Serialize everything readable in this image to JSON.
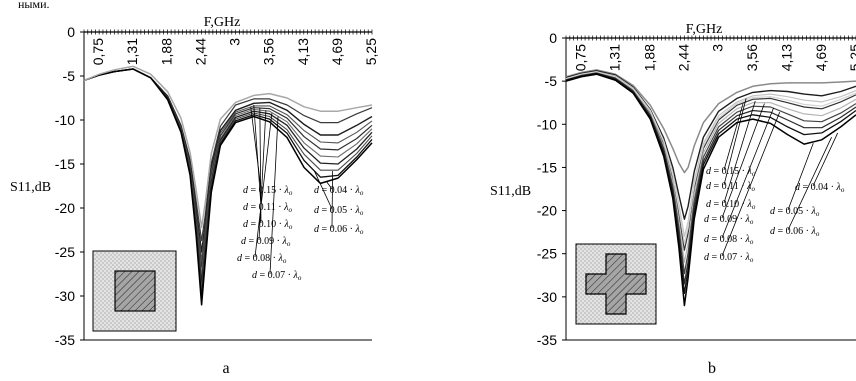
{
  "page_header": "ными.",
  "chart_data": [
    {
      "type": "line",
      "panel_label": "a",
      "xlabel": "F,GHz",
      "ylabel": "S11,dB",
      "xticks": [
        "0,75",
        "1,31",
        "1,88",
        "2,44",
        "3",
        "3,56",
        "4,13",
        "4,69",
        "5,25"
      ],
      "xtick_values": [
        0.75,
        1.31,
        1.88,
        2.44,
        3.0,
        3.56,
        4.13,
        4.69,
        5.25
      ],
      "xlim": [
        0.5,
        5.25
      ],
      "ylim": [
        -35,
        0
      ],
      "yticks": [
        0,
        -5,
        -10,
        -15,
        -20,
        -25,
        -30,
        -35
      ],
      "x": [
        0.5,
        0.75,
        1.0,
        1.31,
        1.6,
        1.88,
        2.1,
        2.25,
        2.35,
        2.44,
        2.5,
        2.6,
        2.75,
        3.0,
        3.3,
        3.56,
        3.85,
        4.13,
        4.4,
        4.69,
        5.0,
        5.25
      ],
      "series": [
        {
          "name": "d = 0.15·λo",
          "values": [
            -5.5,
            -4.9,
            -4.5,
            -4.2,
            -5.2,
            -7.3,
            -10.6,
            -14.5,
            -19.3,
            -23.7,
            -20.8,
            -14.9,
            -10.7,
            -8.3,
            -7.6,
            -7.6,
            -8.3,
            -9.5,
            -10.3,
            -10.3,
            -9.3,
            -8.6
          ]
        },
        {
          "name": "d = 0.11·λo",
          "values": [
            -5.5,
            -4.9,
            -4.5,
            -4.2,
            -5.2,
            -7.3,
            -10.7,
            -14.8,
            -20.2,
            -25.0,
            -21.7,
            -15.4,
            -11.2,
            -8.9,
            -8.1,
            -8.0,
            -8.9,
            -10.5,
            -11.7,
            -11.7,
            -10.6,
            -9.6
          ]
        },
        {
          "name": "d = 0.10·λo",
          "values": [
            -5.5,
            -4.9,
            -4.5,
            -4.2,
            -5.2,
            -7.4,
            -10.8,
            -15.1,
            -20.8,
            -25.9,
            -22.4,
            -15.8,
            -11.5,
            -9.1,
            -8.4,
            -8.4,
            -9.4,
            -11.2,
            -12.5,
            -12.6,
            -11.4,
            -10.1
          ]
        },
        {
          "name": "d = 0.09·λo",
          "values": [
            -5.5,
            -4.9,
            -4.5,
            -4.2,
            -5.2,
            -7.4,
            -10.9,
            -15.3,
            -21.2,
            -26.7,
            -23.0,
            -16.2,
            -11.8,
            -9.3,
            -8.6,
            -8.7,
            -9.8,
            -11.9,
            -13.3,
            -13.4,
            -12.1,
            -10.6
          ]
        },
        {
          "name": "d = 0.08·λo",
          "values": [
            -5.5,
            -4.9,
            -4.5,
            -4.2,
            -5.2,
            -7.5,
            -11.0,
            -15.5,
            -21.6,
            -27.6,
            -23.6,
            -16.6,
            -12.1,
            -9.5,
            -8.8,
            -9.0,
            -10.2,
            -12.6,
            -14.1,
            -14.2,
            -12.7,
            -11.0
          ]
        },
        {
          "name": "d = 0.07·λo",
          "values": [
            -5.5,
            -4.9,
            -4.5,
            -4.2,
            -5.2,
            -7.5,
            -11.1,
            -15.7,
            -22.0,
            -28.5,
            -24.2,
            -17.0,
            -12.3,
            -9.7,
            -9.0,
            -9.3,
            -10.6,
            -13.2,
            -14.9,
            -15.0,
            -13.3,
            -11.4
          ]
        },
        {
          "name": "d = 0.06·λo",
          "values": [
            -5.5,
            -4.9,
            -4.5,
            -4.2,
            -5.2,
            -7.6,
            -11.2,
            -15.9,
            -22.4,
            -29.3,
            -24.8,
            -17.4,
            -12.5,
            -9.9,
            -9.2,
            -9.6,
            -11.1,
            -13.9,
            -15.7,
            -15.7,
            -13.8,
            -11.8
          ]
        },
        {
          "name": "d = 0.05·λo",
          "values": [
            -5.5,
            -4.9,
            -4.5,
            -4.2,
            -5.2,
            -7.6,
            -11.3,
            -16.1,
            -22.8,
            -30.2,
            -25.4,
            -17.8,
            -12.7,
            -10.1,
            -9.4,
            -9.9,
            -11.5,
            -14.6,
            -16.5,
            -16.3,
            -14.2,
            -12.2
          ]
        },
        {
          "name": "d = 0.04·λo",
          "values": [
            -5.5,
            -4.9,
            -4.5,
            -4.2,
            -5.2,
            -7.7,
            -11.4,
            -16.3,
            -23.2,
            -31.0,
            -26.0,
            -18.2,
            -12.9,
            -10.3,
            -9.6,
            -10.2,
            -12.0,
            -15.4,
            -17.2,
            -16.6,
            -14.5,
            -12.6
          ]
        },
        {
          "name": "",
          "values": [
            -5.5,
            -4.8,
            -4.3,
            -3.9,
            -4.8,
            -6.8,
            -9.8,
            -13.7,
            -18.0,
            -22.2,
            -19.4,
            -13.8,
            -9.9,
            -8.0,
            -7.2,
            -7.0,
            -7.5,
            -8.5,
            -9.0,
            -9.0,
            -8.6,
            -8.3
          ]
        }
      ]
    },
    {
      "type": "line",
      "panel_label": "b",
      "xlabel": "F,GHz",
      "ylabel": "S11,dB",
      "xticks": [
        "0,75",
        "1,31",
        "1,88",
        "2,44",
        "3",
        "3,56",
        "4,13",
        "4,69",
        "5,25"
      ],
      "xtick_values": [
        0.75,
        1.31,
        1.88,
        2.44,
        3.0,
        3.56,
        4.13,
        4.69,
        5.25
      ],
      "xlim": [
        0.5,
        5.25
      ],
      "ylim": [
        -35,
        0
      ],
      "yticks": [
        0,
        -5,
        -10,
        -15,
        -20,
        -25,
        -30,
        -35
      ],
      "x": [
        0.5,
        0.75,
        1.0,
        1.31,
        1.6,
        1.88,
        2.1,
        2.25,
        2.35,
        2.44,
        2.5,
        2.6,
        2.75,
        3.0,
        3.3,
        3.56,
        3.85,
        4.13,
        4.4,
        4.69,
        5.0,
        5.25
      ],
      "series": [
        {
          "name": "d = 0.15·λo",
          "values": [
            -4.5,
            -4.0,
            -3.7,
            -4.2,
            -5.5,
            -7.8,
            -10.5,
            -12.8,
            -14.5,
            -15.6,
            -15.0,
            -12.5,
            -9.8,
            -7.6,
            -6.3,
            -5.6,
            -5.3,
            -5.2,
            -5.2,
            -5.2,
            -5.1,
            -5.0
          ]
        },
        {
          "name": "d = 0.11·λo",
          "values": [
            -4.6,
            -4.1,
            -3.8,
            -4.3,
            -5.7,
            -8.3,
            -11.6,
            -15.0,
            -18.2,
            -21.0,
            -19.5,
            -15.5,
            -11.5,
            -8.5,
            -7.0,
            -6.3,
            -6.1,
            -6.2,
            -6.5,
            -6.7,
            -6.2,
            -5.6
          ]
        },
        {
          "name": "d = 0.10·λo",
          "values": [
            -4.7,
            -4.2,
            -3.9,
            -4.4,
            -5.8,
            -8.4,
            -11.9,
            -15.6,
            -19.3,
            -23.0,
            -21.3,
            -16.5,
            -12.2,
            -9.0,
            -7.4,
            -6.7,
            -6.5,
            -6.8,
            -7.2,
            -7.4,
            -6.8,
            -6.1
          ]
        },
        {
          "name": "d = 0.09·λo",
          "values": [
            -4.7,
            -4.2,
            -3.9,
            -4.5,
            -5.9,
            -8.6,
            -12.2,
            -16.2,
            -20.3,
            -24.6,
            -22.6,
            -17.4,
            -12.8,
            -9.5,
            -7.8,
            -7.1,
            -7.0,
            -7.5,
            -8.0,
            -8.2,
            -7.4,
            -6.6
          ]
        },
        {
          "name": "d = 0.08·λo",
          "values": [
            -4.8,
            -4.3,
            -4.0,
            -4.6,
            -6.0,
            -8.8,
            -12.5,
            -16.7,
            -21.2,
            -26.0,
            -23.8,
            -18.2,
            -13.3,
            -9.9,
            -8.2,
            -7.5,
            -7.5,
            -8.2,
            -8.8,
            -9.0,
            -8.1,
            -7.1
          ]
        },
        {
          "name": "d = 0.07·λo",
          "values": [
            -4.8,
            -4.3,
            -4.0,
            -4.6,
            -6.1,
            -8.9,
            -12.8,
            -17.2,
            -22.0,
            -27.3,
            -24.9,
            -18.9,
            -13.8,
            -10.3,
            -8.6,
            -7.9,
            -8.0,
            -8.8,
            -9.6,
            -9.7,
            -8.7,
            -7.6
          ]
        },
        {
          "name": "d = 0.06·λo",
          "values": [
            -4.9,
            -4.4,
            -4.1,
            -4.7,
            -6.2,
            -9.1,
            -13.1,
            -17.7,
            -22.8,
            -28.5,
            -25.9,
            -19.6,
            -14.3,
            -10.7,
            -9.0,
            -8.4,
            -8.6,
            -9.5,
            -10.4,
            -10.4,
            -9.2,
            -8.0
          ]
        },
        {
          "name": "d = 0.05·λo",
          "values": [
            -4.9,
            -4.4,
            -4.1,
            -4.8,
            -6.3,
            -9.2,
            -13.4,
            -18.1,
            -23.5,
            -29.6,
            -26.8,
            -20.3,
            -14.7,
            -11.1,
            -9.4,
            -8.9,
            -9.2,
            -10.3,
            -11.2,
            -11.0,
            -9.7,
            -8.4
          ]
        },
        {
          "name": "d = 0.04·λo",
          "values": [
            -5.0,
            -4.5,
            -4.2,
            -4.9,
            -6.4,
            -9.4,
            -13.7,
            -18.6,
            -24.3,
            -31.0,
            -27.8,
            -21.0,
            -15.2,
            -11.5,
            -9.8,
            -9.4,
            -9.9,
            -11.2,
            -12.3,
            -11.8,
            -10.3,
            -8.9
          ]
        },
        {
          "name": "",
          "values": [
            -4.7,
            -4.2,
            -3.9,
            -4.5,
            -5.9,
            -8.5,
            -12.0,
            -15.9,
            -19.8,
            -23.8,
            -22.0,
            -17.0,
            -12.5,
            -9.3,
            -7.6,
            -6.9,
            -6.8,
            -7.2,
            -7.7,
            -7.9,
            -7.1,
            -6.4
          ]
        }
      ]
    }
  ]
}
